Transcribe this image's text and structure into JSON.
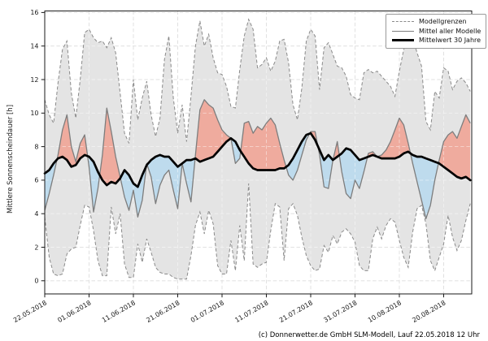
{
  "chart_data": {
    "type": "line",
    "title": "",
    "xlabel": "",
    "ylabel": "Mittlere Sonnenscheindauer [h]",
    "ylim": [
      -0.8,
      16.1
    ],
    "grid": true,
    "legend_position": "top-right",
    "legend": [
      "Modellgrenzen",
      "Mittel aller Modelle",
      "Mittelwert 30 Jahre"
    ],
    "caption": "(c) Donnerwetter.de GmbH SLM-Modell, Lauf 22.05.2018 12 Uhr",
    "y_ticks": [
      0,
      2,
      4,
      6,
      8,
      10,
      12,
      14,
      16
    ],
    "x_ticks": [
      {
        "day": 0,
        "label": "22.05.2018"
      },
      {
        "day": 10,
        "label": "01.06.2018"
      },
      {
        "day": 20,
        "label": "11.06.2018"
      },
      {
        "day": 30,
        "label": "21.06.2018"
      },
      {
        "day": 40,
        "label": "01.07.2018"
      },
      {
        "day": 50,
        "label": "11.07.2018"
      },
      {
        "day": 60,
        "label": "21.07.2018"
      },
      {
        "day": 70,
        "label": "31.07.2018"
      },
      {
        "day": 80,
        "label": "10.08.2018"
      },
      {
        "day": 90,
        "label": "20.08.2018"
      }
    ],
    "x_unit": "days since 22.05.2018, daily values",
    "colors": {
      "band_fill": "#e4e4e4",
      "bound_line": "#8a8a8a",
      "mean_line": "#7d7d7d",
      "avg30_line": "#000000",
      "above_fill": "#efab9e",
      "below_fill": "#bedbed",
      "grid_under": "#c4c4c4",
      "grid_over": "rgba(255,255,255,0.5)",
      "axis": "#1a1a1a"
    },
    "series": [
      {
        "name": "Modellgrenze oben",
        "legend": "Modellgrenzen",
        "style": "dashed-gray",
        "values": [
          10.8,
          9.9,
          9.4,
          11.8,
          13.8,
          14.3,
          11.2,
          9.7,
          12.0,
          14.8,
          15.0,
          14.5,
          14.2,
          14.3,
          13.9,
          14.5,
          13.6,
          11.2,
          8.8,
          8.2,
          12.0,
          9.6,
          10.9,
          11.9,
          9.9,
          8.6,
          9.7,
          13.2,
          14.6,
          10.9,
          8.8,
          10.5,
          8.3,
          11.0,
          14.0,
          15.5,
          14.0,
          14.7,
          13.3,
          12.4,
          12.3,
          11.6,
          10.4,
          10.3,
          12.6,
          14.6,
          15.6,
          15.0,
          12.7,
          12.9,
          13.3,
          12.5,
          13.1,
          14.3,
          14.4,
          13.0,
          10.5,
          9.6,
          11.5,
          14.3,
          15.0,
          14.6,
          11.4,
          13.9,
          14.2,
          13.5,
          12.8,
          12.7,
          12.2,
          11.1,
          10.9,
          10.8,
          12.4,
          12.6,
          12.4,
          12.5,
          12.2,
          11.9,
          11.6,
          11.0,
          12.5,
          13.8,
          14.3,
          14.5,
          13.6,
          12.8,
          9.5,
          9.0,
          11.3,
          10.9,
          12.7,
          12.5,
          11.4,
          11.9,
          12.1,
          11.8,
          11.3
        ]
      },
      {
        "name": "Modellgrenze unten",
        "legend": "Modellgrenzen",
        "style": "dashed-gray",
        "values": [
          3.8,
          1.4,
          0.4,
          0.3,
          0.4,
          1.6,
          1.9,
          2.0,
          3.3,
          4.5,
          4.4,
          3.0,
          1.2,
          0.3,
          0.3,
          4.4,
          2.8,
          4.0,
          1.0,
          0.2,
          0.2,
          2.2,
          1.1,
          2.5,
          1.7,
          0.8,
          0.5,
          0.4,
          0.4,
          0.2,
          0.1,
          0.1,
          0.1,
          1.5,
          3.3,
          4.1,
          2.8,
          4.2,
          3.4,
          0.9,
          0.4,
          0.4,
          2.4,
          0.6,
          3.3,
          1.2,
          5.8,
          1.0,
          0.8,
          1.0,
          1.1,
          3.0,
          4.6,
          4.4,
          1.2,
          4.3,
          4.6,
          3.9,
          2.6,
          1.5,
          0.9,
          0.6,
          0.7,
          2.1,
          1.7,
          2.7,
          2.2,
          2.9,
          3.1,
          2.8,
          2.3,
          0.9,
          0.6,
          0.6,
          2.5,
          3.2,
          2.5,
          3.3,
          3.7,
          3.5,
          2.4,
          1.4,
          0.8,
          2.9,
          4.3,
          4.5,
          3.4,
          1.2,
          0.6,
          1.4,
          2.2,
          3.9,
          2.6,
          1.8,
          2.4,
          3.6,
          4.6
        ]
      },
      {
        "name": "Mittel aller Modelle",
        "legend": "Mittel aller Modelle",
        "style": "solid-gray",
        "values": [
          4.2,
          5.2,
          6.3,
          7.5,
          9.0,
          9.9,
          8.0,
          7.1,
          8.2,
          8.7,
          6.8,
          4.1,
          5.5,
          7.5,
          10.3,
          8.9,
          7.4,
          6.2,
          5.0,
          4.2,
          5.4,
          3.8,
          4.8,
          7.0,
          6.2,
          4.6,
          5.7,
          6.3,
          6.6,
          5.4,
          4.3,
          7.0,
          5.8,
          4.7,
          7.5,
          10.2,
          10.8,
          10.5,
          10.3,
          9.6,
          9.0,
          8.7,
          8.5,
          7.0,
          7.3,
          9.4,
          9.5,
          8.8,
          9.2,
          9.0,
          9.4,
          9.7,
          9.3,
          8.2,
          7.2,
          6.3,
          6.0,
          6.6,
          7.5,
          8.4,
          8.9,
          8.9,
          7.5,
          5.6,
          5.5,
          7.2,
          8.3,
          6.5,
          5.2,
          4.9,
          6.0,
          5.5,
          6.5,
          7.6,
          7.7,
          7.4,
          7.5,
          7.8,
          8.3,
          9.0,
          9.7,
          9.3,
          8.2,
          7.0,
          5.9,
          4.8,
          3.7,
          4.5,
          6.0,
          7.2,
          8.3,
          8.7,
          8.9,
          8.5,
          9.2,
          9.9,
          9.4
        ]
      },
      {
        "name": "Mittelwert 30 Jahre",
        "legend": "Mittelwert 30 Jahre",
        "style": "thick-black",
        "values": [
          6.4,
          6.6,
          7.0,
          7.3,
          7.4,
          7.2,
          6.8,
          6.9,
          7.3,
          7.5,
          7.4,
          7.1,
          6.5,
          6.0,
          5.7,
          5.9,
          5.8,
          6.1,
          6.6,
          6.3,
          5.8,
          5.6,
          6.3,
          6.9,
          7.2,
          7.4,
          7.5,
          7.4,
          7.4,
          7.1,
          6.8,
          7.0,
          7.2,
          7.2,
          7.3,
          7.1,
          7.2,
          7.3,
          7.4,
          7.7,
          8.0,
          8.3,
          8.5,
          8.3,
          7.8,
          7.4,
          7.0,
          6.7,
          6.6,
          6.6,
          6.6,
          6.6,
          6.6,
          6.7,
          6.7,
          6.9,
          7.3,
          7.8,
          8.3,
          8.7,
          8.8,
          8.4,
          7.8,
          7.2,
          7.5,
          7.2,
          7.4,
          7.6,
          7.9,
          7.8,
          7.5,
          7.2,
          7.3,
          7.4,
          7.5,
          7.4,
          7.3,
          7.3,
          7.3,
          7.3,
          7.4,
          7.6,
          7.7,
          7.5,
          7.4,
          7.4,
          7.3,
          7.2,
          7.1,
          7.0,
          6.8,
          6.6,
          6.4,
          6.2,
          6.1,
          6.2,
          6.0
        ]
      }
    ],
    "fills": [
      {
        "name": "Modellgrenzen-Band",
        "between": [
          "Modellgrenze oben",
          "Modellgrenze unten"
        ],
        "color": "#e4e4e4"
      },
      {
        "name": "Modellmittel ueber 30-Jahre-Mittel",
        "between": [
          "Mittel aller Modelle",
          "Mittelwert 30 Jahre"
        ],
        "color": "#efab9e"
      },
      {
        "name": "Modellmittel unter 30-Jahre-Mittel",
        "between": [
          "Mittelwert 30 Jahre",
          "Mittel aller Modelle"
        ],
        "color": "#bedbed"
      }
    ]
  }
}
